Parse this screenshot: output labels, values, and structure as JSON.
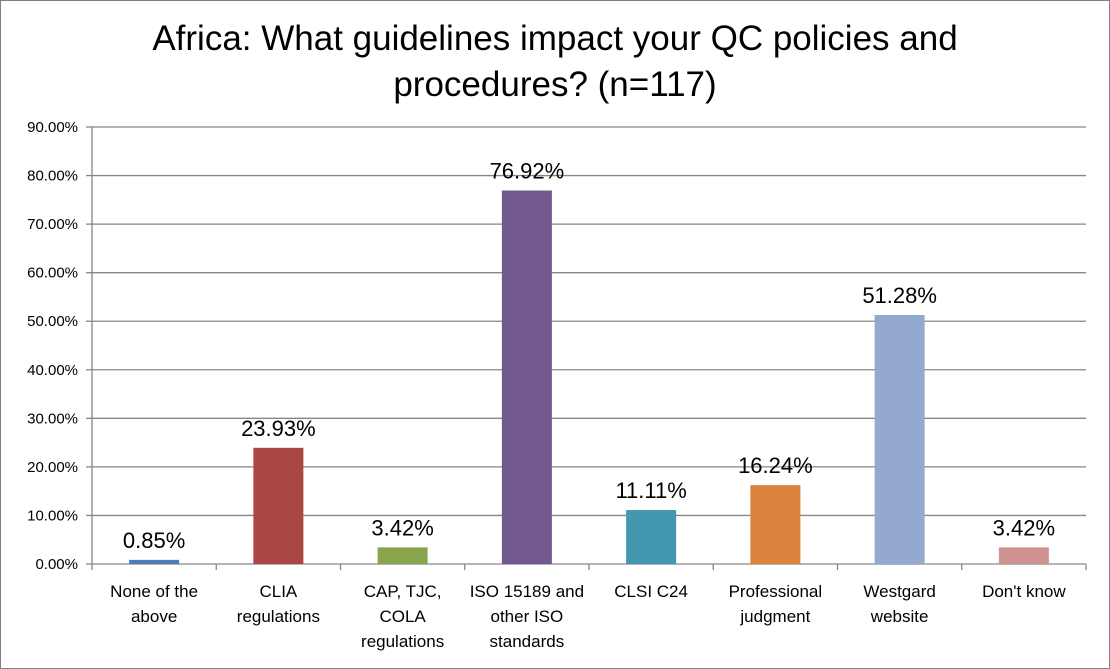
{
  "chart_data": {
    "type": "bar",
    "title_lines": [
      "Africa: What guidelines impact your QC policies and",
      "procedures? (n=117)"
    ],
    "categories": [
      [
        "None of the",
        "above"
      ],
      [
        "CLIA",
        "regulations"
      ],
      [
        "CAP, TJC,",
        "COLA",
        "regulations"
      ],
      [
        "ISO 15189 and",
        "other ISO",
        "standards"
      ],
      [
        "CLSI C24"
      ],
      [
        "Professional",
        "judgment"
      ],
      [
        "Westgard",
        "website"
      ],
      [
        "Don't know"
      ]
    ],
    "values": [
      0.85,
      23.93,
      3.42,
      76.92,
      11.11,
      16.24,
      51.28,
      3.42
    ],
    "data_labels": [
      "0.85%",
      "23.93%",
      "3.42%",
      "76.92%",
      "11.11%",
      "16.24%",
      "51.28%",
      "3.42%"
    ],
    "bar_colors": [
      "#4a7ebb",
      "#aa4643",
      "#89a54e",
      "#71588f",
      "#4198af",
      "#db843d",
      "#93a9cf",
      "#d19392"
    ],
    "y_ticks": [
      0,
      10,
      20,
      30,
      40,
      50,
      60,
      70,
      80,
      90
    ],
    "y_tick_labels": [
      "0.00%",
      "10.00%",
      "20.00%",
      "30.00%",
      "40.00%",
      "50.00%",
      "60.00%",
      "70.00%",
      "80.00%",
      "90.00%"
    ],
    "ylim": [
      0,
      90
    ],
    "grid": true,
    "legend": "none",
    "xlabel": "",
    "ylabel": ""
  }
}
